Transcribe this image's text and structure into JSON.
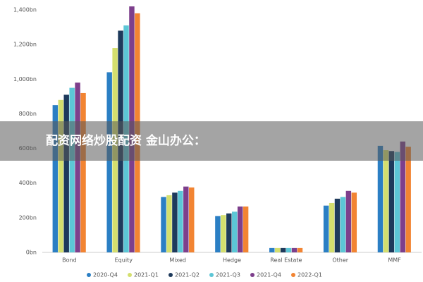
{
  "chart_data": {
    "type": "bar",
    "overlay_text": "配资网络炒股配资 金山办公：",
    "categories": [
      "Bond",
      "Equity",
      "Mixed",
      "Hedge",
      "Real Estate",
      "Other",
      "MMF"
    ],
    "series": [
      {
        "name": "2020-Q4",
        "color": "#2b7fc4",
        "values": [
          850,
          1040,
          320,
          210,
          25,
          270,
          615
        ]
      },
      {
        "name": "2021-Q1",
        "color": "#d4df6e",
        "values": [
          880,
          1180,
          330,
          215,
          25,
          285,
          590
        ]
      },
      {
        "name": "2021-Q2",
        "color": "#1e3a5c",
        "values": [
          910,
          1280,
          345,
          225,
          25,
          310,
          585
        ]
      },
      {
        "name": "2021-Q3",
        "color": "#5cc6d6",
        "values": [
          950,
          1310,
          355,
          235,
          25,
          320,
          580
        ]
      },
      {
        "name": "2021-Q4",
        "color": "#7d3f8c",
        "values": [
          980,
          1420,
          380,
          265,
          25,
          355,
          640
        ]
      },
      {
        "name": "2022-Q1",
        "color": "#f28432",
        "values": [
          920,
          1380,
          375,
          265,
          25,
          345,
          610
        ]
      }
    ],
    "ylim": [
      0,
      1450
    ],
    "yticks": [
      {
        "value": 0,
        "label": "0bn"
      },
      {
        "value": 200,
        "label": "200bn"
      },
      {
        "value": 400,
        "label": "400bn"
      },
      {
        "value": 600,
        "label": "600bn"
      },
      {
        "value": 800,
        "label": "800bn"
      },
      {
        "value": 1000,
        "label": "1,000bn"
      },
      {
        "value": 1200,
        "label": "1,200bn"
      },
      {
        "value": 1400,
        "label": "1,400bn"
      }
    ]
  }
}
